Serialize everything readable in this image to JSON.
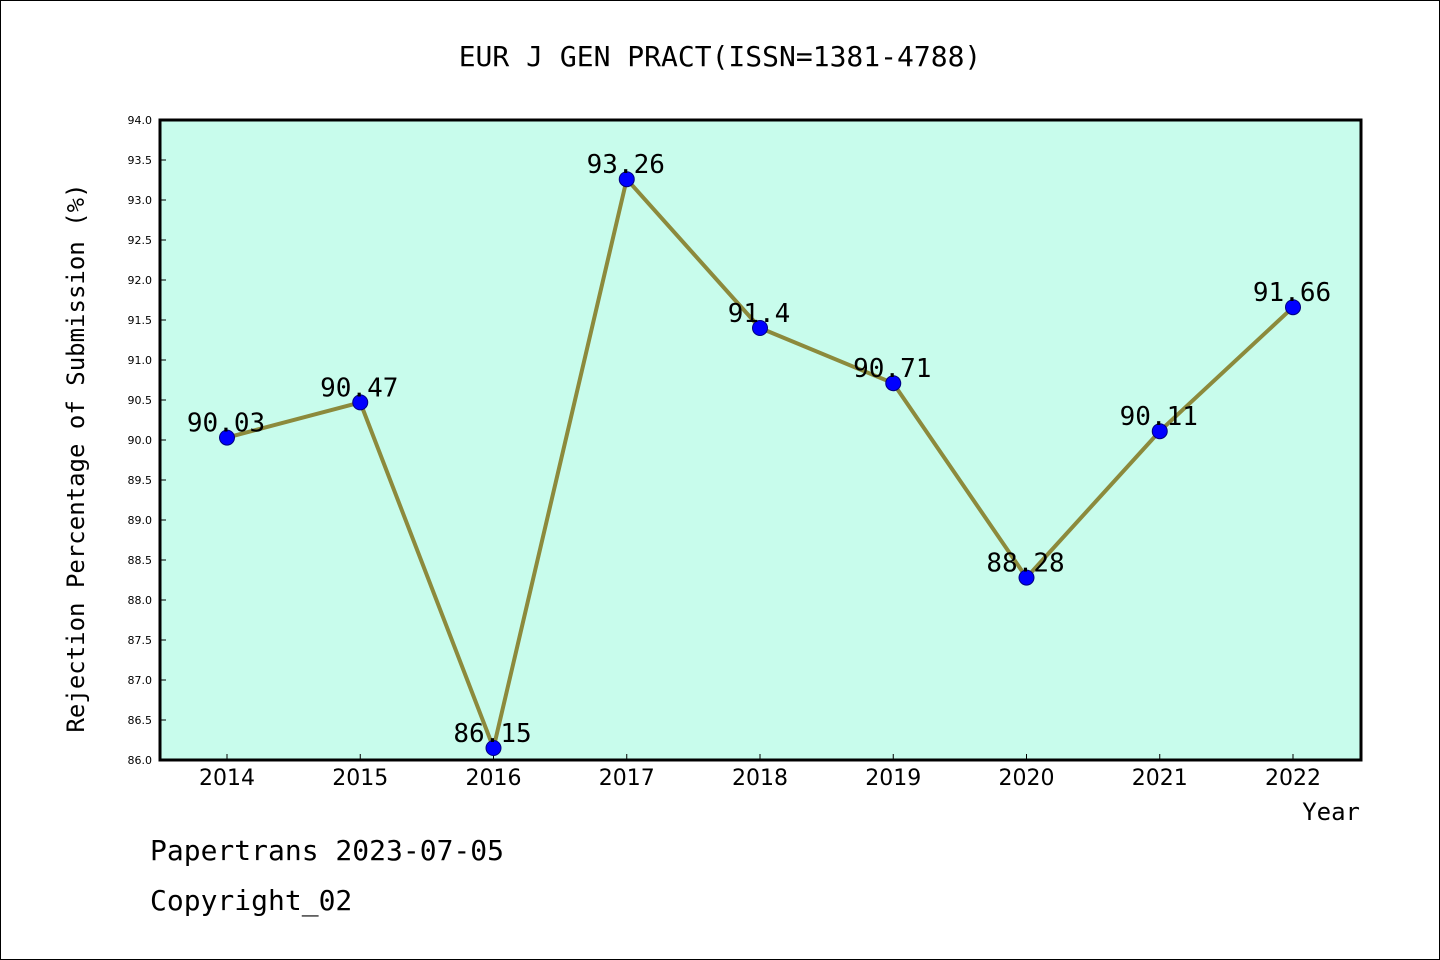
{
  "chart_data": {
    "type": "line",
    "title": "EUR J GEN PRACT(ISSN=1381-4788)",
    "xlabel": "Year",
    "ylabel": "Rejection Percentage of Submission (%)",
    "categories": [
      "2014",
      "2015",
      "2016",
      "2017",
      "2018",
      "2019",
      "2020",
      "2021",
      "2022"
    ],
    "series": [
      {
        "values": [
          90.03,
          90.47,
          86.15,
          93.26,
          91.4,
          90.71,
          88.28,
          90.11,
          91.66
        ],
        "labels": [
          "90.03",
          "90.47",
          "86.15",
          "93.26",
          "91.4",
          "90.71",
          "88.28",
          "90.11",
          "91.66"
        ]
      }
    ],
    "ylim": [
      86.0,
      94.0
    ],
    "yticks": [
      "86.0",
      "86.5",
      "87.0",
      "87.5",
      "88.0",
      "88.5",
      "89.0",
      "89.5",
      "90.0",
      "90.5",
      "91.0",
      "91.5",
      "92.0",
      "92.5",
      "93.0",
      "93.5",
      "94.0"
    ],
    "grid": false,
    "legend": "none",
    "colors": {
      "plot_background": "#c8fcec",
      "line": "#8c8a3c",
      "marker": "#0000ff",
      "axis": "#000000"
    }
  },
  "footer": {
    "line1": "Papertrans 2023-07-05",
    "line2": "Copyright_02"
  }
}
